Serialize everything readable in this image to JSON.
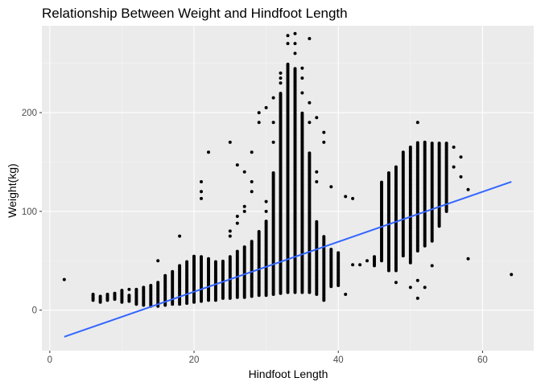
{
  "chart_data": {
    "type": "scatter",
    "title": "Relationship Between Weight and Hindfoot Length",
    "xlabel": "Hindfoot Length",
    "ylabel": "Weight(kg)",
    "xlim": [
      -1.1,
      67.1
    ],
    "ylim": [
      -41,
      288
    ],
    "x_ticks": [
      0,
      20,
      40,
      60
    ],
    "y_ticks": [
      0,
      100,
      200
    ],
    "grid": true,
    "legend": "none",
    "colors": {
      "panel": "#ebebeb",
      "grid_major": "#ffffff",
      "grid_minor": "#f5f5f5",
      "points": "#000000",
      "trend_line": "#3366ff"
    },
    "trend_line": {
      "type": "linear",
      "x": [
        2,
        64
      ],
      "y": [
        -27,
        130
      ]
    },
    "columns": [
      {
        "x": 2,
        "y_min": 31,
        "y_max": 31,
        "outliers": []
      },
      {
        "x": 6,
        "y_min": 10,
        "y_max": 16,
        "outliers": []
      },
      {
        "x": 7,
        "y_min": 8,
        "y_max": 14,
        "outliers": []
      },
      {
        "x": 8,
        "y_min": 10,
        "y_max": 17,
        "outliers": []
      },
      {
        "x": 9,
        "y_min": 11,
        "y_max": 18,
        "outliers": []
      },
      {
        "x": 10,
        "y_min": 8,
        "y_max": 20,
        "outliers": []
      },
      {
        "x": 11,
        "y_min": 9,
        "y_max": 15,
        "outliers": [
          21
        ]
      },
      {
        "x": 12,
        "y_min": 6,
        "y_max": 22,
        "outliers": []
      },
      {
        "x": 13,
        "y_min": 5,
        "y_max": 23,
        "outliers": []
      },
      {
        "x": 14,
        "y_min": 4,
        "y_max": 25,
        "outliers": []
      },
      {
        "x": 15,
        "y_min": 4,
        "y_max": 28,
        "outliers": [
          50
        ]
      },
      {
        "x": 16,
        "y_min": 5,
        "y_max": 35,
        "outliers": []
      },
      {
        "x": 17,
        "y_min": 6,
        "y_max": 40,
        "outliers": []
      },
      {
        "x": 18,
        "y_min": 6,
        "y_max": 45,
        "outliers": [
          75
        ]
      },
      {
        "x": 19,
        "y_min": 7,
        "y_max": 50,
        "outliers": []
      },
      {
        "x": 20,
        "y_min": 8,
        "y_max": 55,
        "outliers": []
      },
      {
        "x": 21,
        "y_min": 9,
        "y_max": 55,
        "outliers": [
          113,
          120,
          130
        ]
      },
      {
        "x": 22,
        "y_min": 10,
        "y_max": 52,
        "outliers": [
          160
        ]
      },
      {
        "x": 23,
        "y_min": 10,
        "y_max": 50,
        "outliers": []
      },
      {
        "x": 24,
        "y_min": 12,
        "y_max": 50,
        "outliers": []
      },
      {
        "x": 25,
        "y_min": 12,
        "y_max": 55,
        "outliers": [
          75,
          80,
          170
        ]
      },
      {
        "x": 26,
        "y_min": 13,
        "y_max": 60,
        "outliers": [
          88,
          95,
          147
        ]
      },
      {
        "x": 27,
        "y_min": 13,
        "y_max": 65,
        "outliers": [
          100,
          105,
          140
        ]
      },
      {
        "x": 28,
        "y_min": 14,
        "y_max": 70,
        "outliers": [
          120,
          130,
          160
        ]
      },
      {
        "x": 29,
        "y_min": 15,
        "y_max": 80,
        "outliers": [
          190,
          200
        ]
      },
      {
        "x": 30,
        "y_min": 15,
        "y_max": 90,
        "outliers": [
          100,
          110,
          205
        ]
      },
      {
        "x": 31,
        "y_min": 16,
        "y_max": 140,
        "outliers": [
          170,
          190,
          215
        ]
      },
      {
        "x": 32,
        "y_min": 17,
        "y_max": 220,
        "outliers": [
          230,
          235,
          240
        ]
      },
      {
        "x": 33,
        "y_min": 18,
        "y_max": 250,
        "outliers": [
          270,
          278
        ]
      },
      {
        "x": 34,
        "y_min": 18,
        "y_max": 245,
        "outliers": [
          260,
          270,
          280
        ]
      },
      {
        "x": 35,
        "y_min": 18,
        "y_max": 200,
        "outliers": [
          220,
          235,
          245
        ]
      },
      {
        "x": 36,
        "y_min": 18,
        "y_max": 160,
        "outliers": [
          190,
          210,
          275
        ]
      },
      {
        "x": 37,
        "y_min": 16,
        "y_max": 90,
        "outliers": [
          130,
          140,
          195
        ]
      },
      {
        "x": 38,
        "y_min": 10,
        "y_max": 75,
        "outliers": [
          170,
          180
        ]
      },
      {
        "x": 39,
        "y_min": 24,
        "y_max": 62,
        "outliers": [
          125
        ]
      },
      {
        "x": 40,
        "y_min": 25,
        "y_max": 58,
        "outliers": []
      },
      {
        "x": 41,
        "y_min": 16,
        "y_max": 16,
        "outliers": [
          115
        ]
      },
      {
        "x": 42,
        "y_min": 46,
        "y_max": 46,
        "outliers": [
          113
        ]
      },
      {
        "x": 43,
        "y_min": 46,
        "y_max": 46,
        "outliers": []
      },
      {
        "x": 44,
        "y_min": 50,
        "y_max": 50,
        "outliers": []
      },
      {
        "x": 45,
        "y_min": 45,
        "y_max": 55,
        "outliers": []
      },
      {
        "x": 46,
        "y_min": 50,
        "y_max": 130,
        "outliers": []
      },
      {
        "x": 47,
        "y_min": 40,
        "y_max": 140,
        "outliers": []
      },
      {
        "x": 48,
        "y_min": 40,
        "y_max": 145,
        "outliers": [
          28
        ]
      },
      {
        "x": 49,
        "y_min": 55,
        "y_max": 160,
        "outliers": []
      },
      {
        "x": 50,
        "y_min": 48,
        "y_max": 165,
        "outliers": [
          23
        ]
      },
      {
        "x": 51,
        "y_min": 60,
        "y_max": 170,
        "outliers": [
          12,
          30,
          190
        ]
      },
      {
        "x": 52,
        "y_min": 65,
        "y_max": 170,
        "outliers": [
          23
        ]
      },
      {
        "x": 53,
        "y_min": 70,
        "y_max": 170,
        "outliers": [
          45
        ]
      },
      {
        "x": 54,
        "y_min": 85,
        "y_max": 170,
        "outliers": []
      },
      {
        "x": 55,
        "y_min": 100,
        "y_max": 170,
        "outliers": [
          105
        ]
      },
      {
        "x": 56,
        "y_min": 145,
        "y_max": 145,
        "outliers": [
          165
        ]
      },
      {
        "x": 57,
        "y_min": 135,
        "y_max": 135,
        "outliers": [
          155
        ]
      },
      {
        "x": 58,
        "y_min": 52,
        "y_max": 52,
        "outliers": [
          122
        ]
      },
      {
        "x": 64,
        "y_min": 36,
        "y_max": 36,
        "outliers": []
      }
    ]
  }
}
